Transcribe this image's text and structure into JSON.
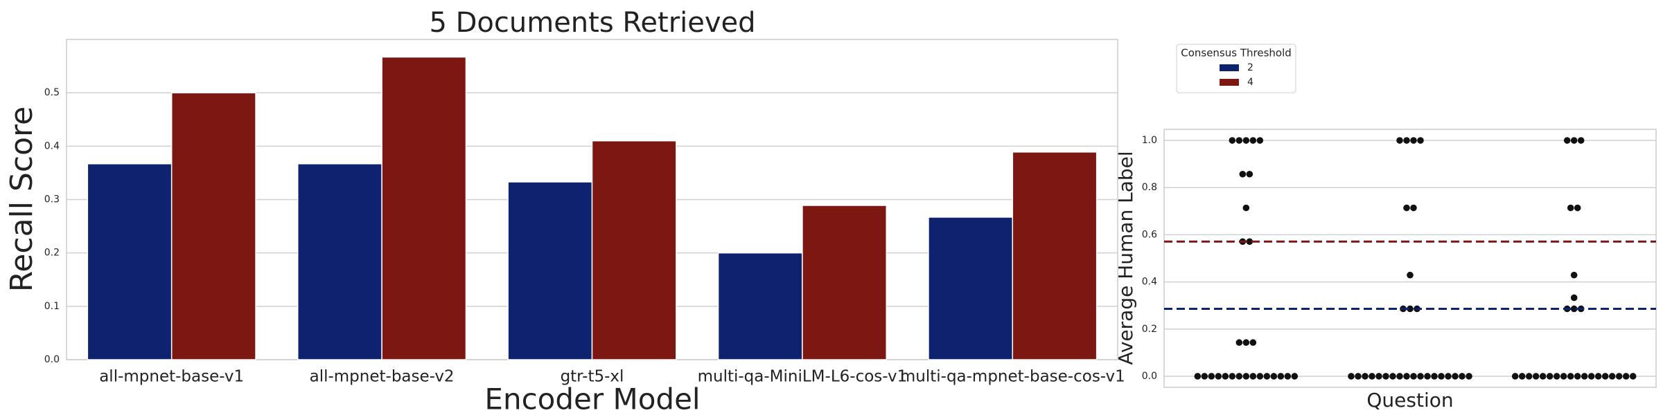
{
  "chart_data": [
    {
      "type": "bar",
      "title": "5 Documents Retrieved",
      "x_label": "Encoder Model",
      "y_label": "Recall Score",
      "categories": [
        "all-mpnet-base-v1",
        "all-mpnet-base-v2",
        "gtr-t5-xl",
        "multi-qa-MiniLM-L6-cos-v1",
        "multi-qa-mpnet-base-cos-v1"
      ],
      "series": [
        {
          "name": "2",
          "color": "#0f2270",
          "values": [
            0.367,
            0.367,
            0.333,
            0.2,
            0.267
          ]
        },
        {
          "name": "4",
          "color": "#7d1712",
          "values": [
            0.5,
            0.567,
            0.41,
            0.289,
            0.389
          ]
        }
      ],
      "legend_title": "Consensus Threshold",
      "ylim": [
        0,
        0.6
      ],
      "yticks": [
        {
          "value": 0,
          "label": "0.0"
        },
        0.1,
        0.2,
        0.3,
        0.4,
        0.5
      ],
      "grid": true
    },
    {
      "type": "swarm",
      "x_label": "Question",
      "y_label": "Average Human Label",
      "categories": [
        null,
        null,
        null
      ],
      "groups": [
        [
          1,
          1,
          1,
          1,
          1,
          0.857,
          0.857,
          0.714,
          0.571,
          0.571,
          0.143,
          0.143,
          0.143,
          0,
          0,
          0,
          0,
          0,
          0,
          0,
          0,
          0,
          0,
          0,
          0,
          0,
          0,
          0
        ],
        [
          1,
          1,
          1,
          1,
          0.714,
          0.714,
          0.429,
          0.286,
          0.286,
          0.286,
          0,
          0,
          0,
          0,
          0,
          0,
          0,
          0,
          0,
          0,
          0,
          0,
          0,
          0,
          0,
          0,
          0,
          0
        ],
        [
          1,
          1,
          1,
          0.714,
          0.714,
          0.429,
          0.333,
          0.286,
          0.286,
          0.286,
          0,
          0,
          0,
          0,
          0,
          0,
          0,
          0,
          0,
          0,
          0,
          0,
          0,
          0,
          0,
          0,
          0,
          0
        ]
      ],
      "color": "#111111",
      "hlines": [
        {
          "value": 0.571,
          "color": "#7d1712"
        },
        {
          "value": 0.286,
          "color": "#0f2270"
        }
      ],
      "ylim": [
        -0.047,
        1.047
      ],
      "yticks": [
        {
          "value": 0,
          "label": "0.0"
        },
        0.2,
        0.4,
        0.6,
        0.8,
        {
          "value": 1,
          "label": "1.0"
        }
      ],
      "grid": true
    }
  ]
}
